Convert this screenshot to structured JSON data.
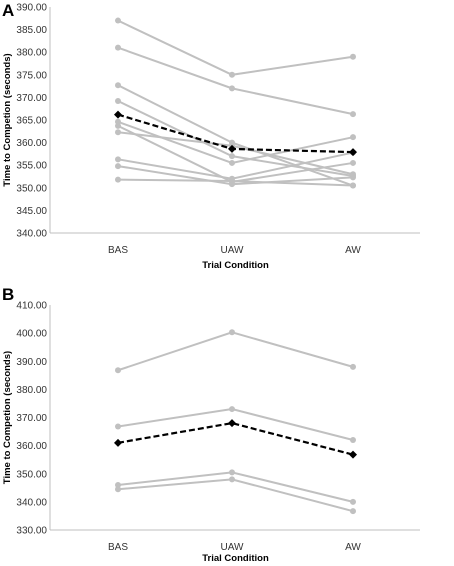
{
  "chart_data": [
    {
      "panel_label": "A",
      "type": "line",
      "xlabel": "Trial Condition",
      "ylabel": "Time to Competion (seconds)",
      "categories": [
        "BAS",
        "UAW",
        "AW"
      ],
      "ylim": [
        340,
        390
      ],
      "yticks": [
        "340.00",
        "345.00",
        "350.00",
        "355.00",
        "360.00",
        "365.00",
        "370.00",
        "375.00",
        "380.00",
        "385.00",
        "390.00"
      ],
      "grid": false,
      "individual_color": "#c0c0c0",
      "mean_color": "#000000",
      "series": [
        {
          "values": [
            387.0,
            375.0,
            379.0
          ]
        },
        {
          "values": [
            381.0,
            372.0,
            366.3
          ]
        },
        {
          "values": [
            372.7,
            360.0,
            350.5
          ]
        },
        {
          "values": [
            369.2,
            357.0,
            352.6
          ]
        },
        {
          "values": [
            364.6,
            355.5,
            361.2
          ]
        },
        {
          "values": [
            363.7,
            351.3,
            355.5
          ]
        },
        {
          "values": [
            362.3,
            359.3,
            353.0
          ]
        },
        {
          "values": [
            356.3,
            352.0,
            357.8
          ]
        },
        {
          "values": [
            354.8,
            350.8,
            352.3
          ]
        },
        {
          "values": [
            351.8,
            351.5,
            350.5
          ]
        },
        {
          "mean": true,
          "values": [
            366.2,
            358.6,
            357.9
          ]
        }
      ]
    },
    {
      "panel_label": "B",
      "type": "line",
      "xlabel": "Trial Condition",
      "ylabel": "Time to Competion (seconds)",
      "categories": [
        "BAS",
        "UAW",
        "AW"
      ],
      "ylim": [
        330,
        410
      ],
      "yticks": [
        "330.00",
        "340.00",
        "350.00",
        "360.00",
        "370.00",
        "380.00",
        "390.00",
        "400.00",
        "410.00"
      ],
      "grid": false,
      "individual_color": "#c0c0c0",
      "mean_color": "#000000",
      "series": [
        {
          "values": [
            386.8,
            400.3,
            388.0
          ]
        },
        {
          "values": [
            366.8,
            373.0,
            362.0
          ]
        },
        {
          "values": [
            346.0,
            350.5,
            340.0
          ]
        },
        {
          "values": [
            344.5,
            348.0,
            336.7
          ]
        },
        {
          "mean": true,
          "values": [
            361.0,
            368.0,
            356.8
          ]
        }
      ]
    }
  ]
}
